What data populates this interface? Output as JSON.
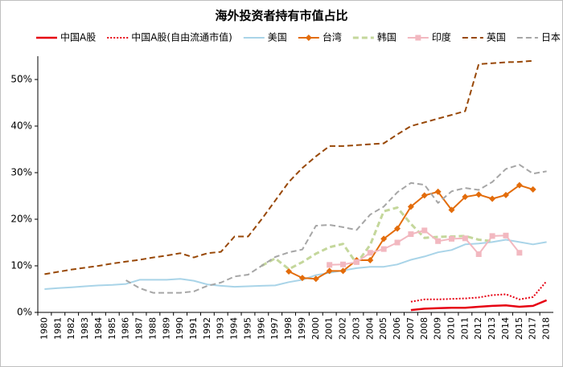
{
  "chart_data": {
    "type": "line",
    "title": "海外投资者持有市值占比",
    "categories": [
      "1980",
      "1981",
      "1982",
      "1983",
      "1984",
      "1985",
      "1986",
      "1987",
      "1988",
      "1989",
      "1990",
      "1991",
      "1992",
      "1993",
      "1994",
      "1995",
      "1996",
      "1997",
      "1998",
      "1999",
      "2000",
      "2001",
      "2002",
      "2003",
      "2004",
      "2005",
      "2006",
      "2007",
      "2008",
      "2009",
      "2010",
      "2011",
      "2012",
      "2013",
      "2014",
      "2015",
      "2017",
      "2018"
    ],
    "ylim": [
      0,
      55
    ],
    "yticks": [
      {
        "value": 0,
        "label": "0%"
      },
      {
        "value": 10,
        "label": "10%"
      },
      {
        "value": 20,
        "label": "20%"
      },
      {
        "value": 30,
        "label": "30%"
      },
      {
        "value": 40,
        "label": "40%"
      },
      {
        "value": 50,
        "label": "50%"
      }
    ],
    "grid": false,
    "legend": "top",
    "series": [
      {
        "name": "中国A股",
        "color": "#e60012",
        "style": "solid",
        "width": 2.5,
        "values": [
          null,
          null,
          null,
          null,
          null,
          null,
          null,
          null,
          null,
          null,
          null,
          null,
          null,
          null,
          null,
          null,
          null,
          null,
          null,
          null,
          null,
          null,
          null,
          null,
          null,
          null,
          null,
          0.5,
          0.8,
          0.9,
          1.0,
          1.0,
          1.2,
          1.4,
          1.5,
          1.2,
          1.4,
          2.6
        ]
      },
      {
        "name": "中国A股(自由流通市值)",
        "color": "#e60012",
        "style": "dotted",
        "width": 2,
        "values": [
          null,
          null,
          null,
          null,
          null,
          null,
          null,
          null,
          null,
          null,
          null,
          null,
          null,
          null,
          null,
          null,
          null,
          null,
          null,
          null,
          null,
          null,
          null,
          null,
          null,
          null,
          null,
          2.3,
          2.8,
          2.8,
          2.9,
          3.0,
          3.2,
          3.7,
          3.9,
          2.8,
          3.3,
          6.7
        ]
      },
      {
        "name": "美国",
        "color": "#a9d4e8",
        "style": "solid",
        "width": 2,
        "values": [
          5.0,
          5.2,
          5.4,
          5.6,
          5.8,
          5.9,
          6.1,
          7.0,
          7.0,
          7.0,
          7.2,
          6.8,
          6.0,
          5.7,
          5.5,
          5.6,
          5.7,
          5.8,
          6.5,
          7.0,
          8.0,
          8.5,
          9.0,
          9.5,
          9.8,
          9.8,
          10.3,
          11.3,
          12.0,
          12.9,
          13.4,
          14.6,
          14.8,
          15.1,
          15.6,
          15.1,
          14.6,
          15.1
        ]
      },
      {
        "name": "台湾",
        "color": "#e36c0a",
        "style": "solid",
        "width": 2,
        "marker": "diamond",
        "values": [
          null,
          null,
          null,
          null,
          null,
          null,
          null,
          null,
          null,
          null,
          null,
          null,
          null,
          null,
          null,
          null,
          null,
          null,
          8.8,
          7.4,
          7.2,
          8.9,
          8.9,
          11.2,
          11.2,
          15.8,
          18.0,
          22.7,
          25.1,
          25.9,
          22.0,
          24.8,
          25.3,
          24.4,
          25.2,
          27.3,
          26.4,
          null
        ]
      },
      {
        "name": "韩国",
        "color": "#c4d79b",
        "style": "dashed",
        "width": 3,
        "values": [
          null,
          null,
          null,
          null,
          null,
          null,
          null,
          null,
          null,
          null,
          null,
          null,
          null,
          null,
          null,
          null,
          10.0,
          11.6,
          9.3,
          10.8,
          12.6,
          14.0,
          14.7,
          10.5,
          14.5,
          21.7,
          22.5,
          19.0,
          16.0,
          16.2,
          16.3,
          16.4,
          15.6,
          15.3,
          null,
          null,
          null,
          null
        ]
      },
      {
        "name": "印度",
        "color": "#f2b8c0",
        "style": "solid",
        "width": 2,
        "marker": "square",
        "values": [
          null,
          null,
          null,
          null,
          null,
          null,
          null,
          null,
          null,
          null,
          null,
          null,
          null,
          null,
          null,
          null,
          null,
          null,
          null,
          null,
          null,
          10.2,
          10.3,
          10.8,
          12.8,
          13.6,
          15.0,
          16.8,
          17.6,
          15.3,
          15.8,
          15.9,
          12.5,
          16.4,
          16.5,
          12.8,
          null,
          null
        ]
      },
      {
        "name": "英国",
        "color": "#984807",
        "style": "dashed",
        "width": 2,
        "values": [
          8.2,
          8.7,
          9.2,
          9.6,
          10.0,
          10.5,
          10.9,
          11.3,
          11.8,
          12.2,
          12.7,
          11.8,
          12.7,
          13.0,
          16.3,
          16.3,
          20.0,
          24.0,
          28.0,
          31.0,
          33.5,
          35.7,
          35.7,
          35.9,
          36.1,
          36.3,
          38.2,
          40.0,
          40.8,
          41.6,
          42.4,
          43.2,
          53.3,
          53.5,
          53.7,
          53.8,
          54.0,
          null
        ]
      },
      {
        "name": "日本",
        "color": "#a6a6a6",
        "style": "dashed",
        "width": 2,
        "values": [
          null,
          null,
          null,
          null,
          null,
          null,
          6.9,
          5.2,
          4.2,
          4.2,
          4.2,
          4.5,
          5.7,
          6.4,
          7.7,
          8.1,
          10.0,
          11.9,
          12.9,
          13.5,
          18.6,
          18.8,
          18.3,
          17.7,
          21.0,
          22.7,
          25.8,
          27.8,
          27.4,
          23.5,
          26.0,
          26.7,
          26.3,
          28.0,
          30.8,
          31.7,
          29.8,
          30.3
        ]
      }
    ]
  }
}
